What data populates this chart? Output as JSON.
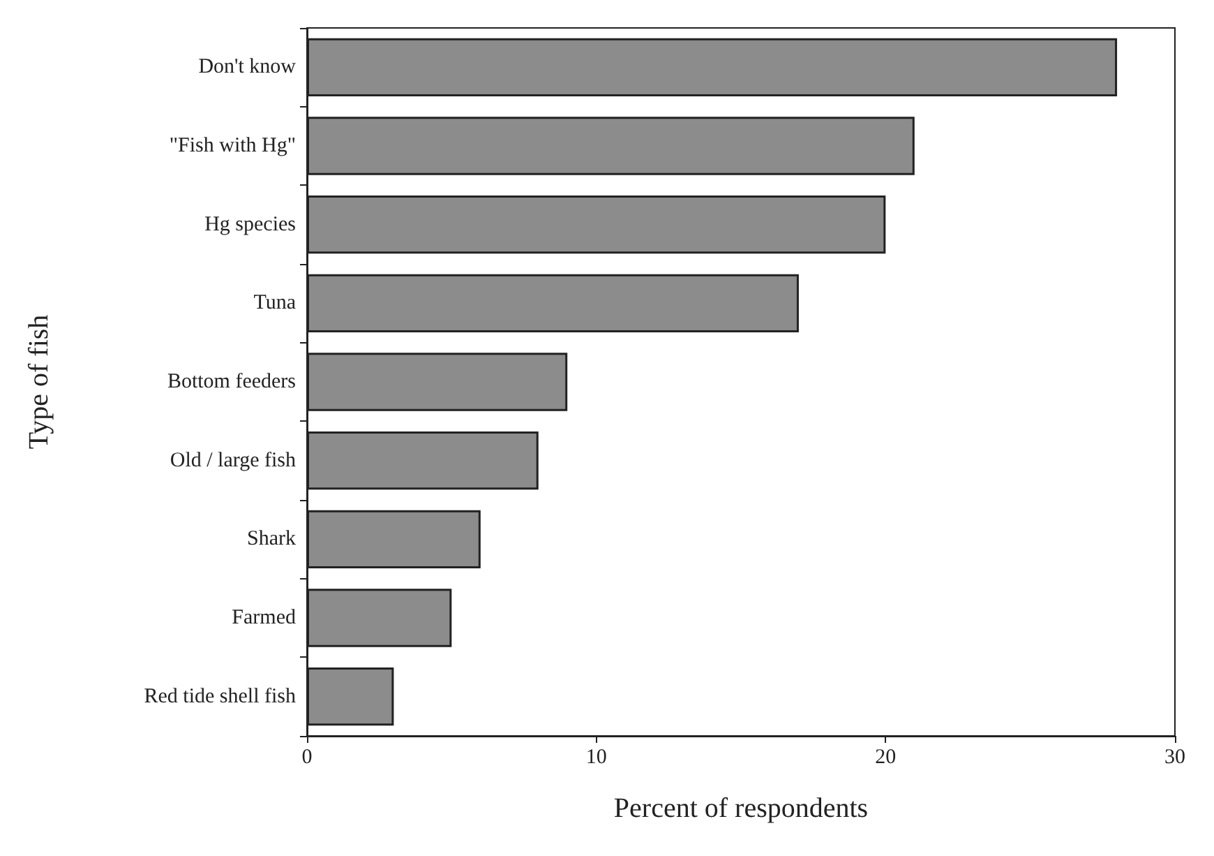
{
  "chart_data": {
    "type": "bar",
    "orientation": "horizontal",
    "xlabel": "Percent of respondents",
    "ylabel": "Type of fish",
    "categories": [
      "Don't know",
      "\"Fish with Hg\"",
      "Hg species",
      "Tuna",
      "Bottom feeders",
      "Old / large fish",
      "Shark",
      "Farmed",
      "Red tide shell fish"
    ],
    "values": [
      28,
      21,
      20,
      17,
      9,
      8,
      6,
      5,
      3
    ],
    "color": "#8c8c8c",
    "xlim": [
      0,
      30
    ],
    "xticks": [
      0,
      10,
      20,
      30
    ],
    "grid": false
  }
}
